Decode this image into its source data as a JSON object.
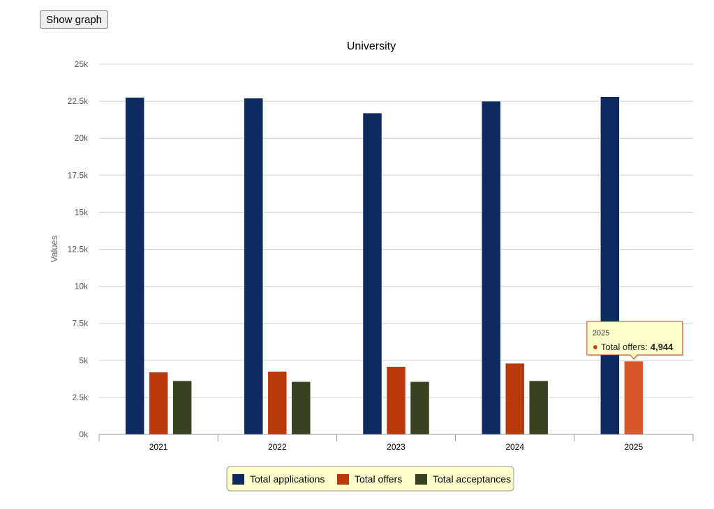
{
  "controls": {
    "show_graph_label": "Show graph"
  },
  "chart_data": {
    "type": "bar",
    "title": "University",
    "xlabel": "",
    "ylabel": "Values",
    "ylim": [
      0,
      25000
    ],
    "yticks": [
      "0k",
      "2.5k",
      "5k",
      "7.5k",
      "10k",
      "12.5k",
      "15k",
      "17.5k",
      "20k",
      "22.5k",
      "25k"
    ],
    "categories": [
      "2021",
      "2022",
      "2023",
      "2024",
      "2025"
    ],
    "series": [
      {
        "name": "Total applications",
        "color": "#0d2b5e",
        "values": [
          22750,
          22700,
          21700,
          22500,
          22800
        ]
      },
      {
        "name": "Total offers",
        "color": "#b83a0c",
        "values": [
          4200,
          4250,
          4580,
          4800,
          4944
        ]
      },
      {
        "name": "Total acceptances",
        "color": "#374320",
        "values": [
          3620,
          3560,
          3560,
          3620,
          null
        ]
      }
    ],
    "grid": true,
    "legend_position": "bottom",
    "legend_background": "#ffffcc",
    "tooltip": {
      "category": "2025",
      "series": "Total offers",
      "label": "Total offers:",
      "value": "4,944",
      "highlight_color": "#d9582a",
      "background": "#ffffcc",
      "border": "#c0461e"
    }
  }
}
